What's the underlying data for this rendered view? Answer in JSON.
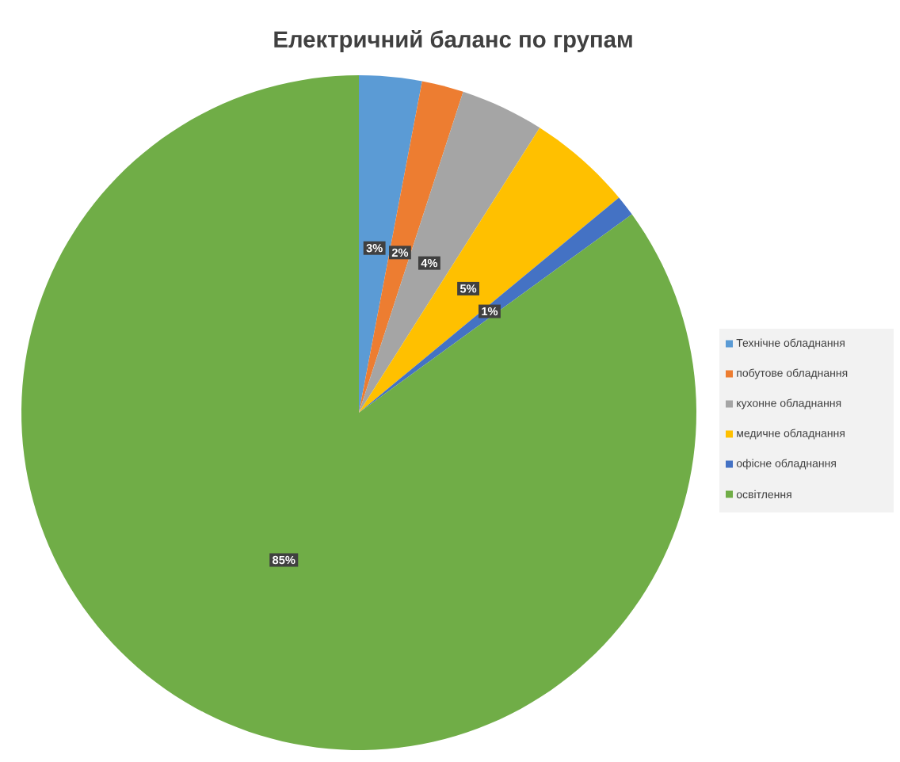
{
  "chart_data": {
    "type": "pie",
    "title": "Електричний баланс по групам",
    "categories": [
      "Технічне обладнання",
      "побутове обладнання",
      "кухонне обладнання",
      "медичне обладнання",
      "офісне обладнання",
      "освітлення"
    ],
    "values": [
      3,
      2,
      4,
      5,
      1,
      85
    ],
    "colors": [
      "#5b9bd5",
      "#ed7d31",
      "#a5a5a5",
      "#ffc000",
      "#4472c4",
      "#70ad47"
    ],
    "value_labels": [
      "3%",
      "2%",
      "4%",
      "5%",
      "1%",
      "85%"
    ],
    "legend": "right"
  }
}
